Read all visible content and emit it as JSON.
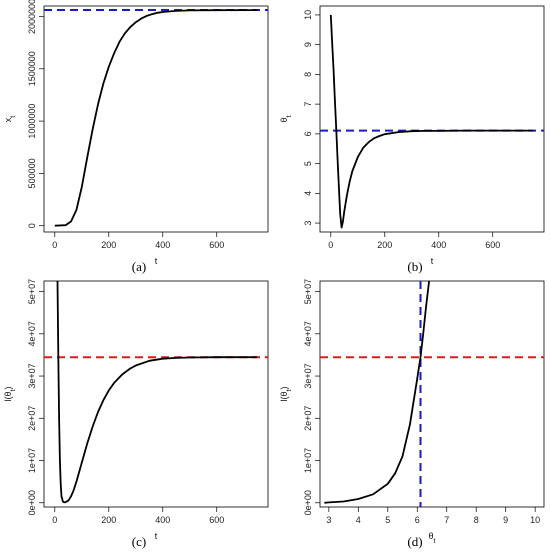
{
  "figure": {
    "captions": [
      "(a)",
      "(b)",
      "(c)",
      "(d)"
    ]
  },
  "colors": {
    "curve": "#000000",
    "blue": "#1a1acc",
    "red": "#e0191b",
    "frame": "#000000"
  },
  "chart_data": [
    {
      "type": "line",
      "panel": "a",
      "xlabel": "t",
      "ylabel": "x_t",
      "xlim": [
        -40,
        790
      ],
      "ylim": [
        -60000,
        2100000
      ],
      "xticks": [
        0,
        200,
        400,
        600
      ],
      "xtick_labels": [
        "0",
        "200",
        "400",
        "600"
      ],
      "yticks": [
        0,
        500000,
        1000000,
        1500000,
        2000000
      ],
      "ytick_labels": [
        "0",
        "500000",
        "1000000",
        "1500000",
        "2000000"
      ],
      "series": [
        {
          "style": "solid",
          "color": "black",
          "x": [
            0,
            40,
            60,
            80,
            100,
            120,
            140,
            160,
            180,
            200,
            220,
            240,
            260,
            280,
            300,
            320,
            340,
            360,
            380,
            400,
            450,
            500,
            600,
            750
          ],
          "y": [
            0,
            5000,
            40000,
            150000,
            370000,
            650000,
            920000,
            1160000,
            1360000,
            1520000,
            1650000,
            1760000,
            1840000,
            1900000,
            1945000,
            1980000,
            2005000,
            2022000,
            2035000,
            2043000,
            2053000,
            2058000,
            2060000,
            2061000
          ]
        }
      ],
      "hlines": [
        {
          "y": 2062000,
          "style": "dashed",
          "color": "blue"
        }
      ],
      "vlines": []
    },
    {
      "type": "line",
      "panel": "b",
      "xlabel": "t",
      "ylabel": "θ_t",
      "xlim": [
        -40,
        790
      ],
      "ylim": [
        2.7,
        10.3
      ],
      "xticks": [
        0,
        200,
        400,
        600
      ],
      "xtick_labels": [
        "0",
        "200",
        "400",
        "600"
      ],
      "yticks": [
        3,
        4,
        5,
        6,
        7,
        8,
        9,
        10
      ],
      "ytick_labels": [
        "3",
        "4",
        "5",
        "6",
        "7",
        "8",
        "9",
        "10"
      ],
      "series": [
        {
          "style": "solid",
          "color": "black",
          "x": [
            0,
            5,
            10,
            15,
            20,
            25,
            30,
            35,
            40,
            45,
            50,
            60,
            70,
            80,
            100,
            120,
            140,
            160,
            180,
            200,
            250,
            300,
            350,
            400,
            500,
            600,
            750
          ],
          "y": [
            10,
            9.1,
            8.2,
            7.2,
            6.2,
            5.2,
            4.2,
            3.3,
            2.85,
            3.05,
            3.4,
            3.95,
            4.4,
            4.75,
            5.22,
            5.53,
            5.72,
            5.85,
            5.93,
            5.99,
            6.06,
            6.09,
            6.1,
            6.1,
            6.11,
            6.11,
            6.11
          ]
        }
      ],
      "hlines": [
        {
          "y": 6.11,
          "style": "dashed",
          "color": "blue"
        }
      ],
      "vlines": []
    },
    {
      "type": "line",
      "panel": "c",
      "xlabel": "t",
      "ylabel": "l(θ_t)",
      "xlim": [
        -40,
        790
      ],
      "ylim": [
        -1000000,
        52500000
      ],
      "xticks": [
        0,
        200,
        400,
        600
      ],
      "xtick_labels": [
        "0",
        "200",
        "400",
        "600"
      ],
      "yticks": [
        0,
        10000000,
        20000000,
        30000000,
        40000000,
        50000000
      ],
      "ytick_labels": [
        "0e+00",
        "1e+07",
        "2e+07",
        "3e+07",
        "4e+07",
        "5e+07"
      ],
      "series": [
        {
          "style": "solid",
          "color": "black",
          "x": [
            10,
            13,
            16,
            19,
            22,
            25,
            30,
            35,
            40,
            50,
            60,
            70,
            80,
            100,
            120,
            140,
            160,
            180,
            200,
            220,
            250,
            280,
            300,
            350,
            400,
            450,
            500,
            600,
            750
          ],
          "y": [
            52500000,
            35000000,
            20000000,
            10000000,
            4500000,
            1500000,
            300000,
            100000,
            150000,
            500000,
            1500000,
            3000000,
            5000000,
            9500000,
            14000000,
            18000000,
            21500000,
            24300000,
            26600000,
            28400000,
            30400000,
            31800000,
            32500000,
            33600000,
            34100000,
            34300000,
            34400000,
            34450000,
            34450000
          ]
        }
      ],
      "hlines": [
        {
          "y": 34450000,
          "style": "dashed",
          "color": "red"
        }
      ],
      "vlines": []
    },
    {
      "type": "line",
      "panel": "d",
      "xlabel": "θ_t",
      "ylabel": "l(θ_t)",
      "xlim": [
        2.7,
        10.3
      ],
      "ylim": [
        -1000000,
        52500000
      ],
      "xticks": [
        3,
        4,
        5,
        6,
        7,
        8,
        9,
        10
      ],
      "xtick_labels": [
        "3",
        "4",
        "5",
        "6",
        "7",
        "8",
        "9",
        "10"
      ],
      "yticks": [
        0,
        10000000,
        20000000,
        30000000,
        40000000,
        50000000
      ],
      "ytick_labels": [
        "0e+00",
        "1e+07",
        "2e+07",
        "3e+07",
        "4e+07",
        "5e+07"
      ],
      "series": [
        {
          "style": "solid",
          "color": "black",
          "x": [
            2.85,
            3,
            3.5,
            4,
            4.5,
            5,
            5.25,
            5.5,
            5.75,
            6,
            6.11,
            6.2,
            6.3,
            6.4
          ],
          "y": [
            0,
            100000,
            300000,
            900000,
            2000000,
            4500000,
            7000000,
            11000000,
            18500000,
            29500000,
            34450000,
            40000000,
            46500000,
            52500000
          ]
        }
      ],
      "hlines": [
        {
          "y": 34450000,
          "style": "dashed",
          "color": "red"
        }
      ],
      "vlines": [
        {
          "x": 6.11,
          "style": "dashed",
          "color": "blue"
        }
      ]
    }
  ]
}
